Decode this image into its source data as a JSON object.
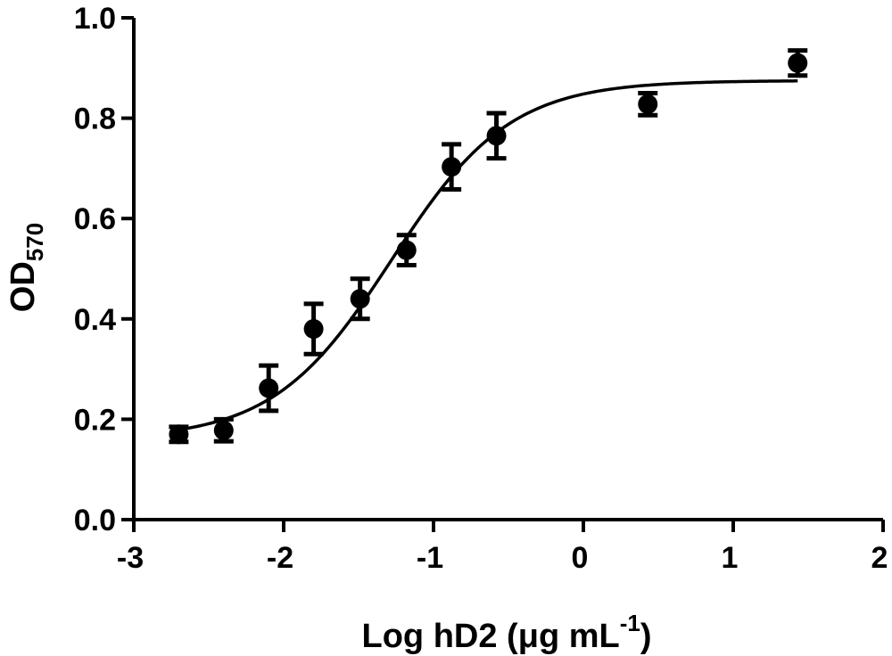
{
  "chart_data": {
    "type": "scatter",
    "xlabel": "Log hD2 (μg mL",
    "xlabel_sup": "-1",
    "xlabel_close": ")",
    "ylabel": "OD",
    "ylabel_sub": "570",
    "xlim": [
      -3,
      2
    ],
    "ylim": [
      0,
      1.0
    ],
    "x_ticks": [
      -3,
      -2,
      -1,
      0,
      1,
      2
    ],
    "x_tick_labels": [
      "-3",
      "-2",
      "-1",
      "0",
      "1",
      "2"
    ],
    "y_ticks": [
      0,
      0.2,
      0.4,
      0.6,
      0.8,
      1.0
    ],
    "y_tick_labels": [
      "0.0",
      "0.2",
      "0.4",
      "0.6",
      "0.8",
      "1.0"
    ],
    "grid": false,
    "series": [
      {
        "points": [
          {
            "x": -2.7,
            "y": 0.17,
            "err": 0.015
          },
          {
            "x": -2.4,
            "y": 0.178,
            "err": 0.022
          },
          {
            "x": -2.1,
            "y": 0.262,
            "err": 0.045
          },
          {
            "x": -1.8,
            "y": 0.38,
            "err": 0.05
          },
          {
            "x": -1.49,
            "y": 0.44,
            "err": 0.04
          },
          {
            "x": -1.18,
            "y": 0.537,
            "err": 0.03
          },
          {
            "x": -0.88,
            "y": 0.703,
            "err": 0.045
          },
          {
            "x": -0.58,
            "y": 0.765,
            "err": 0.045
          },
          {
            "x": 0.43,
            "y": 0.828,
            "err": 0.022
          },
          {
            "x": 1.43,
            "y": 0.91,
            "err": 0.025
          }
        ]
      }
    ],
    "fit_curve": {
      "model": "sigmoidal dose-response",
      "bottom": 0.16,
      "top": 0.875,
      "log_ec50": -1.28,
      "hill_slope": 1.1
    }
  }
}
